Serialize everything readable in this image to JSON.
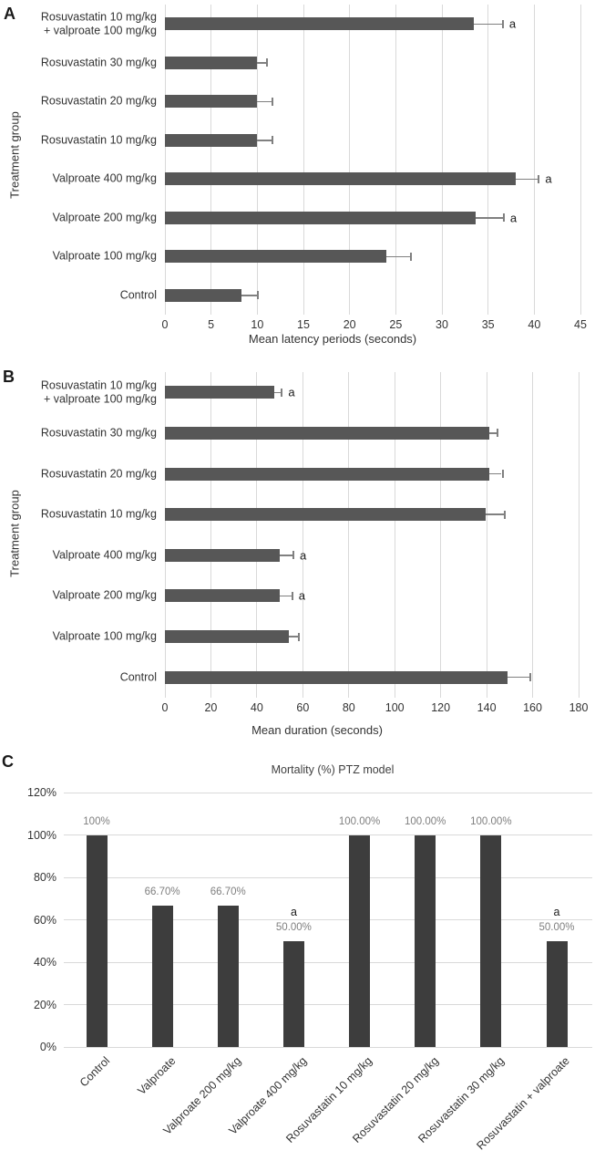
{
  "panels": {
    "a": {
      "letter": "A",
      "y_axis_title": "Treatment group",
      "x_axis_title": "Mean latency periods (seconds)"
    },
    "b": {
      "letter": "B",
      "y_axis_title": "Treatment group",
      "x_axis_title": "Mean duration (seconds)"
    },
    "c": {
      "letter": "C",
      "title": "Mortality (%) PTZ model"
    }
  },
  "colors": {
    "bar_ab": "#575757",
    "bar_c": "#3d3d3d",
    "gridline": "#d9d9d9",
    "error_bar": "#808080",
    "value_label": "#7f7f7f",
    "text": "#333333"
  },
  "chart_data": [
    {
      "type": "bar",
      "orientation": "horizontal",
      "panel": "A",
      "xlabel": "Mean latency periods (seconds)",
      "ylabel": "Treatment group",
      "xlim": [
        0,
        45
      ],
      "xticks": [
        0,
        5,
        10,
        15,
        20,
        25,
        30,
        35,
        40,
        45
      ],
      "grid": true,
      "categories": [
        "Rosuvastatin 10 mg/kg\n+ valproate 100 mg/kg",
        "Rosuvastatin 30 mg/kg",
        "Rosuvastatin 20 mg/kg",
        "Rosuvastatin 10 mg/kg",
        "Valproate 400 mg/kg",
        "Valproate 200 mg/kg",
        "Valproate 100 mg/kg",
        "Control"
      ],
      "values": [
        33.5,
        10,
        10,
        10,
        38,
        33.7,
        24,
        8.3
      ],
      "errors": [
        3,
        1,
        1.5,
        1.5,
        2.4,
        2.9,
        2.5,
        1.7
      ],
      "annotations": [
        "a",
        null,
        null,
        null,
        "a",
        "a",
        null,
        null
      ]
    },
    {
      "type": "bar",
      "orientation": "horizontal",
      "panel": "B",
      "xlabel": "Mean duration (seconds)",
      "ylabel": "Treatment group",
      "xlim": [
        0,
        180
      ],
      "xticks": [
        0,
        20,
        40,
        60,
        80,
        100,
        120,
        140,
        160,
        180
      ],
      "grid": true,
      "categories": [
        "Rosuvastatin 10 mg/kg\n+ valproate 100 mg/kg",
        "Rosuvastatin 30 mg/kg",
        "Rosuvastatin 20 mg/kg",
        "Rosuvastatin 10 mg/kg",
        "Valproate 400 mg/kg",
        "Valproate 200 mg/kg",
        "Valproate 100 mg/kg",
        "Control"
      ],
      "values": [
        47.5,
        141,
        141,
        139.5,
        50,
        50,
        54,
        149
      ],
      "errors": [
        3,
        3.5,
        5.5,
        8,
        5.5,
        5,
        4,
        9.5
      ],
      "annotations": [
        "a",
        null,
        null,
        null,
        "a",
        "a",
        null,
        null
      ]
    },
    {
      "type": "bar",
      "orientation": "vertical",
      "panel": "C",
      "title": "Mortality (%) PTZ model",
      "ylim": [
        0,
        120
      ],
      "yticks": [
        "0%",
        "20%",
        "40%",
        "60%",
        "80%",
        "100%",
        "120%"
      ],
      "grid": true,
      "categories": [
        "Control",
        "Valproate",
        "Valproate 200 mg/kg",
        "Valproate 400 mg/kg",
        "Rosuvastatin 10 mg/kg",
        "Rosuvastatin 20 mg/kg",
        "Rosuvastatin 30 mg/kg",
        "Rosuvastatin + valproate"
      ],
      "values": [
        100,
        66.7,
        66.7,
        50,
        100,
        100,
        100,
        50
      ],
      "value_labels": [
        "100%",
        "66.70%",
        "66.70%",
        "50.00%",
        "100.00%",
        "100.00%",
        "100.00%",
        "50.00%"
      ],
      "annotations": [
        null,
        null,
        null,
        "a",
        null,
        null,
        null,
        "a"
      ]
    }
  ]
}
